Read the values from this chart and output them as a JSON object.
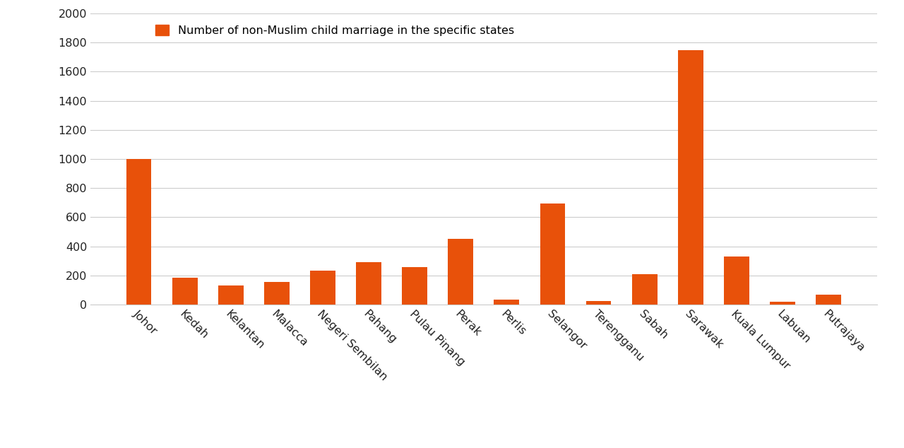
{
  "categories": [
    "Johor",
    "Kedah",
    "Kelantan",
    "Malacca",
    "Negeri Sembilan",
    "Pahang",
    "Pulau Pinang",
    "Perak",
    "Perlis",
    "Selangor",
    "Terengganu",
    "Sabah",
    "Sarawak",
    "Kuala Lumpur",
    "Labuan",
    "Putrajaya"
  ],
  "values": [
    1000,
    185,
    130,
    155,
    235,
    290,
    260,
    450,
    35,
    695,
    25,
    210,
    1750,
    330,
    22,
    70
  ],
  "bar_color": "#E8510A",
  "legend_label": "Number of non-Muslim child marriage in the specific states",
  "ylim": [
    0,
    2000
  ],
  "yticks": [
    0,
    200,
    400,
    600,
    800,
    1000,
    1200,
    1400,
    1600,
    1800,
    2000
  ],
  "background_color": "#FFFFFF",
  "grid_color": "#CCCCCC",
  "tick_color": "#222222",
  "legend_fontsize": 11.5,
  "tick_fontsize": 11.5,
  "bar_width": 0.55
}
